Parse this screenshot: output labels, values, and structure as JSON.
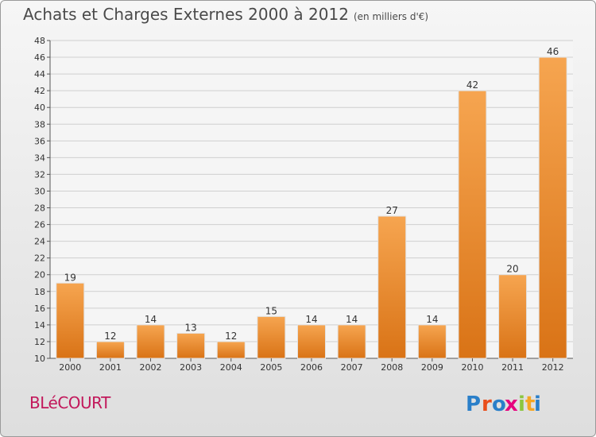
{
  "title": "Achats et Charges Externes 2000 à 2012",
  "unit": "(en milliers d'€)",
  "city": "BLéCOURT",
  "logo": {
    "text": "Proxiti",
    "letters": [
      "P",
      "r",
      "o",
      "x",
      "i",
      "t",
      "i"
    ],
    "colors": [
      "#2a7fc9",
      "#e94e1b",
      "#2a7fc9",
      "#e6007e",
      "#8cc63f",
      "#f5a623",
      "#2a7fc9"
    ]
  },
  "colors": {
    "bar_light": "#f6a550",
    "bar_dark": "#d97316",
    "grid": "#cfcfcf",
    "text": "#333333",
    "plot_bg": "#f5f5f5"
  },
  "chart_data": {
    "type": "bar",
    "categories": [
      "2000",
      "2001",
      "2002",
      "2003",
      "2004",
      "2005",
      "2006",
      "2007",
      "2008",
      "2009",
      "2010",
      "2011",
      "2012"
    ],
    "values": [
      19,
      12,
      14,
      13,
      12,
      15,
      14,
      14,
      27,
      14,
      42,
      20,
      46
    ],
    "ylim": [
      10,
      48
    ],
    "yticks": [
      10,
      12,
      14,
      16,
      18,
      20,
      22,
      24,
      26,
      28,
      30,
      32,
      34,
      36,
      38,
      40,
      42,
      44,
      46,
      48
    ],
    "grid": true,
    "legend": "none"
  }
}
